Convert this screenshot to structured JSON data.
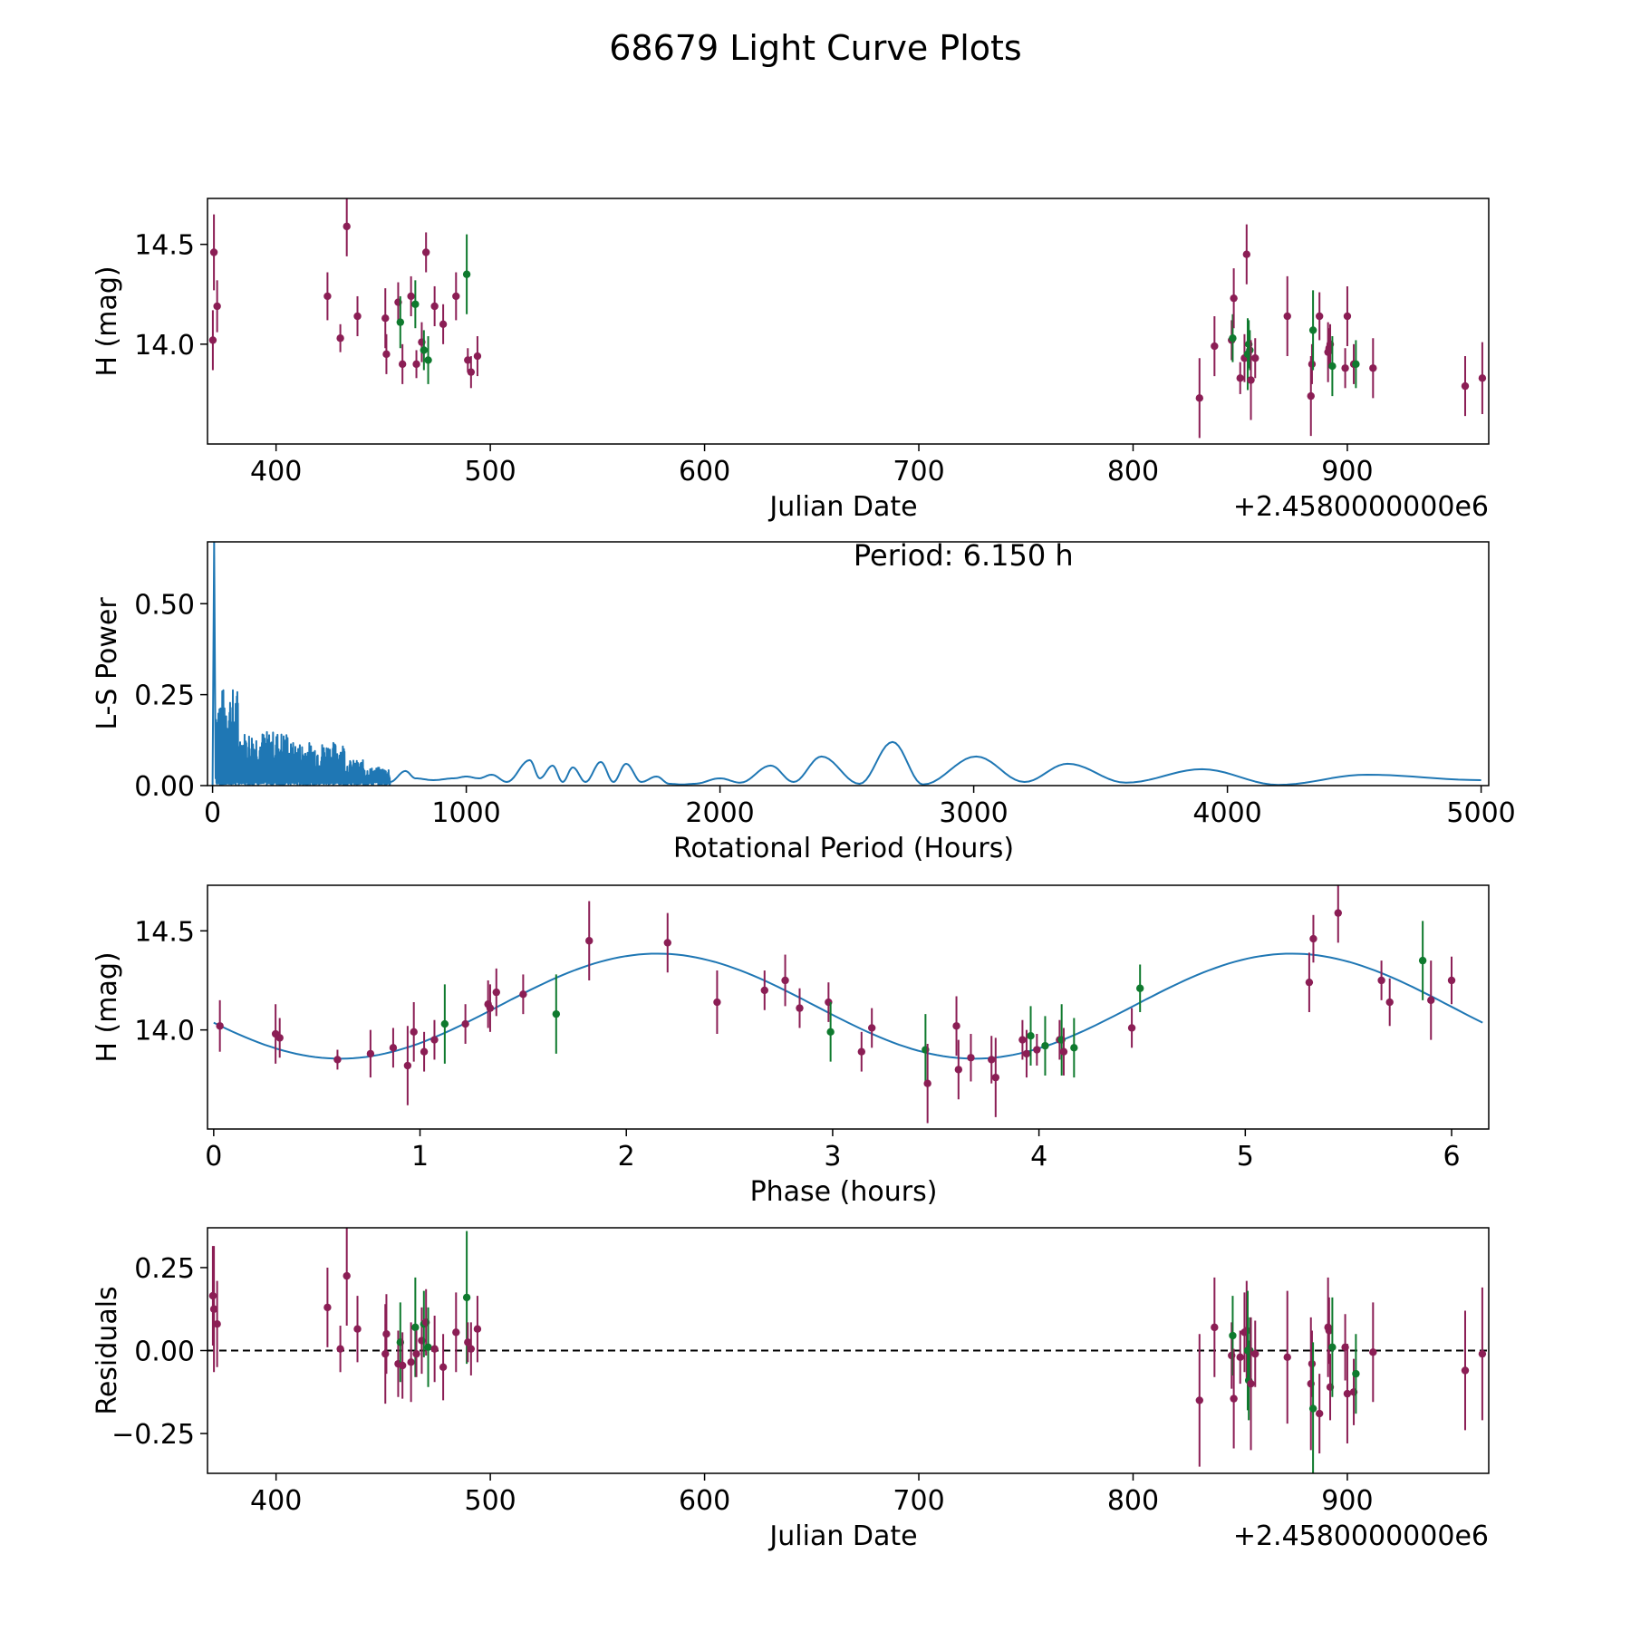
{
  "figure_title": "68679 Light Curve Plots",
  "colors": {
    "magenta": "#8b1e55",
    "green": "#0f7a2e",
    "line": "#1f77b4",
    "axis": "#000000"
  },
  "chart_data": [
    {
      "id": "lightcurve",
      "type": "scatter",
      "xlabel": "Julian Date",
      "ylabel": "H (mag)",
      "offset_text": "+2.4580000000e6",
      "xlim": [
        368,
        966
      ],
      "ylim": [
        13.5,
        14.73
      ],
      "xticks": [
        400,
        500,
        600,
        700,
        800,
        900
      ],
      "yticks": [
        14.0,
        14.5
      ],
      "ytick_labels": [
        "14.0",
        "14.5"
      ],
      "points": [
        [
          370.5,
          14.02,
          0.15,
          "m"
        ],
        [
          371,
          14.46,
          0.19,
          "m"
        ],
        [
          372.5,
          14.19,
          0.13,
          "m"
        ],
        [
          424,
          14.24,
          0.12,
          "m"
        ],
        [
          430,
          14.03,
          0.07,
          "m"
        ],
        [
          433,
          14.59,
          0.15,
          "m"
        ],
        [
          438,
          14.14,
          0.1,
          "m"
        ],
        [
          451,
          14.13,
          0.15,
          "m"
        ],
        [
          451.5,
          13.95,
          0.1,
          "m"
        ],
        [
          457,
          14.21,
          0.1,
          "m"
        ],
        [
          458,
          14.11,
          0.13,
          "g"
        ],
        [
          459,
          13.9,
          0.1,
          "m"
        ],
        [
          463,
          14.24,
          0.1,
          "m"
        ],
        [
          465,
          14.2,
          0.12,
          "g"
        ],
        [
          465.5,
          13.9,
          0.07,
          "m"
        ],
        [
          468,
          14.01,
          0.1,
          "m"
        ],
        [
          469,
          13.97,
          0.1,
          "g"
        ],
        [
          470,
          14.46,
          0.1,
          "m"
        ],
        [
          471,
          13.92,
          0.12,
          "g"
        ],
        [
          474,
          14.19,
          0.1,
          "m"
        ],
        [
          478,
          14.1,
          0.1,
          "m"
        ],
        [
          484,
          14.24,
          0.12,
          "m"
        ],
        [
          489,
          14.35,
          0.2,
          "g"
        ],
        [
          489.5,
          13.92,
          0.06,
          "m"
        ],
        [
          491,
          13.86,
          0.08,
          "m"
        ],
        [
          494,
          13.94,
          0.1,
          "m"
        ],
        [
          831,
          13.73,
          0.2,
          "m"
        ],
        [
          838,
          13.99,
          0.15,
          "m"
        ],
        [
          846,
          14.02,
          0.1,
          "m"
        ],
        [
          846.5,
          14.03,
          0.12,
          "g"
        ],
        [
          847,
          14.23,
          0.15,
          "m"
        ],
        [
          850,
          13.83,
          0.08,
          "m"
        ],
        [
          852,
          13.93,
          0.12,
          "m"
        ],
        [
          853,
          14.45,
          0.15,
          "m"
        ],
        [
          853.5,
          13.95,
          0.18,
          "g"
        ],
        [
          854,
          14.0,
          0.12,
          "g"
        ],
        [
          854.5,
          13.97,
          0.1,
          "g"
        ],
        [
          855,
          13.82,
          0.2,
          "m"
        ],
        [
          857,
          13.93,
          0.1,
          "m"
        ],
        [
          872,
          14.14,
          0.2,
          "m"
        ],
        [
          883,
          13.74,
          0.2,
          "m"
        ],
        [
          883.5,
          13.9,
          0.1,
          "m"
        ],
        [
          884,
          14.07,
          0.2,
          "g"
        ],
        [
          887,
          14.14,
          0.12,
          "m"
        ],
        [
          891,
          13.96,
          0.15,
          "m"
        ],
        [
          891.5,
          13.98,
          0.1,
          "m"
        ],
        [
          892,
          14.0,
          0.1,
          "m"
        ],
        [
          893,
          13.89,
          0.15,
          "g"
        ],
        [
          899,
          13.88,
          0.1,
          "m"
        ],
        [
          900,
          14.14,
          0.15,
          "m"
        ],
        [
          903,
          13.9,
          0.1,
          "m"
        ],
        [
          904,
          13.9,
          0.12,
          "g"
        ],
        [
          912,
          13.88,
          0.15,
          "m"
        ],
        [
          955,
          13.79,
          0.15,
          "m"
        ],
        [
          963,
          13.83,
          0.18,
          "m"
        ]
      ]
    },
    {
      "id": "periodogram",
      "type": "line",
      "xlabel": "Rotational Period (Hours)",
      "ylabel": "L-S Power",
      "annotation": "Period: 6.150 h",
      "xlim": [
        -20,
        5030
      ],
      "ylim": [
        0,
        0.67
      ],
      "xticks": [
        0,
        1000,
        2000,
        3000,
        4000,
        5000
      ],
      "yticks": [
        0.0,
        0.25,
        0.5
      ],
      "ytick_labels": [
        "0.00",
        "0.25",
        "0.50"
      ],
      "peak": {
        "period": 6.15,
        "power": 0.67
      },
      "smooth_curve": [
        [
          700,
          0.01
        ],
        [
          760,
          0.04
        ],
        [
          800,
          0.02
        ],
        [
          870,
          0.015
        ],
        [
          950,
          0.02
        ],
        [
          1000,
          0.025
        ],
        [
          1050,
          0.02
        ],
        [
          1100,
          0.03
        ],
        [
          1160,
          0.01
        ],
        [
          1250,
          0.07
        ],
        [
          1290,
          0.02
        ],
        [
          1340,
          0.055
        ],
        [
          1380,
          0.01
        ],
        [
          1420,
          0.05
        ],
        [
          1470,
          0.01
        ],
        [
          1530,
          0.065
        ],
        [
          1580,
          0.01
        ],
        [
          1630,
          0.06
        ],
        [
          1690,
          0.01
        ],
        [
          1750,
          0.025
        ],
        [
          1800,
          0.005
        ],
        [
          1850,
          0.003
        ],
        [
          1900,
          0.005
        ],
        [
          2000,
          0.02
        ],
        [
          2080,
          0.008
        ],
        [
          2200,
          0.055
        ],
        [
          2290,
          0.01
        ],
        [
          2400,
          0.08
        ],
        [
          2550,
          0.005
        ],
        [
          2680,
          0.12
        ],
        [
          2800,
          0.003
        ],
        [
          3010,
          0.08
        ],
        [
          3200,
          0.01
        ],
        [
          3370,
          0.06
        ],
        [
          3600,
          0.008
        ],
        [
          3900,
          0.045
        ],
        [
          4200,
          0.002
        ],
        [
          4550,
          0.03
        ],
        [
          5000,
          0.015
        ]
      ]
    },
    {
      "id": "phased",
      "type": "scatter",
      "xlabel": "Phase (hours)",
      "ylabel": "H (mag)",
      "xlim": [
        -0.03,
        6.18
      ],
      "ylim": [
        13.5,
        14.73
      ],
      "xticks": [
        0,
        1,
        2,
        3,
        4,
        5,
        6
      ],
      "yticks": [
        14.0,
        14.5
      ],
      "ytick_labels": [
        "14.0",
        "14.5"
      ],
      "model": {
        "mean": 14.12,
        "amplitude": 0.265,
        "period": 6.15,
        "peak_phase": 2.15
      },
      "points": [
        [
          0.03,
          14.02,
          0.13,
          "m"
        ],
        [
          0.3,
          13.98,
          0.15,
          "m"
        ],
        [
          0.32,
          13.96,
          0.1,
          "m"
        ],
        [
          0.6,
          13.85,
          0.05,
          "m"
        ],
        [
          0.76,
          13.88,
          0.12,
          "m"
        ],
        [
          0.87,
          13.91,
          0.1,
          "m"
        ],
        [
          0.94,
          13.82,
          0.2,
          "m"
        ],
        [
          0.97,
          13.99,
          0.15,
          "m"
        ],
        [
          1.02,
          13.89,
          0.1,
          "m"
        ],
        [
          1.07,
          13.95,
          0.1,
          "m"
        ],
        [
          1.12,
          14.03,
          0.2,
          "g"
        ],
        [
          1.22,
          14.03,
          0.1,
          "m"
        ],
        [
          1.33,
          14.13,
          0.12,
          "m"
        ],
        [
          1.34,
          14.11,
          0.12,
          "m"
        ],
        [
          1.37,
          14.19,
          0.12,
          "m"
        ],
        [
          1.5,
          14.18,
          0.1,
          "m"
        ],
        [
          1.66,
          14.08,
          0.2,
          "g"
        ],
        [
          1.82,
          14.45,
          0.2,
          "m"
        ],
        [
          2.2,
          14.44,
          0.15,
          "m"
        ],
        [
          2.44,
          14.14,
          0.16,
          "m"
        ],
        [
          2.67,
          14.2,
          0.1,
          "m"
        ],
        [
          2.77,
          14.25,
          0.13,
          "m"
        ],
        [
          2.84,
          14.11,
          0.1,
          "m"
        ],
        [
          2.98,
          14.14,
          0.1,
          "m"
        ],
        [
          2.99,
          13.99,
          0.15,
          "g"
        ],
        [
          3.14,
          13.89,
          0.1,
          "m"
        ],
        [
          3.19,
          14.01,
          0.1,
          "m"
        ],
        [
          3.45,
          13.9,
          0.18,
          "g"
        ],
        [
          3.46,
          13.73,
          0.2,
          "m"
        ],
        [
          3.6,
          14.02,
          0.15,
          "m"
        ],
        [
          3.61,
          13.8,
          0.15,
          "m"
        ],
        [
          3.67,
          13.86,
          0.12,
          "m"
        ],
        [
          3.77,
          13.85,
          0.12,
          "m"
        ],
        [
          3.79,
          13.76,
          0.2,
          "m"
        ],
        [
          3.92,
          13.95,
          0.1,
          "m"
        ],
        [
          3.94,
          13.88,
          0.12,
          "m"
        ],
        [
          3.96,
          13.97,
          0.15,
          "g"
        ],
        [
          3.99,
          13.9,
          0.08,
          "m"
        ],
        [
          4.03,
          13.92,
          0.15,
          "g"
        ],
        [
          4.1,
          13.95,
          0.1,
          "m"
        ],
        [
          4.11,
          13.95,
          0.18,
          "g"
        ],
        [
          4.12,
          13.89,
          0.12,
          "m"
        ],
        [
          4.17,
          13.91,
          0.15,
          "g"
        ],
        [
          4.45,
          14.01,
          0.1,
          "m"
        ],
        [
          4.49,
          14.21,
          0.12,
          "g"
        ],
        [
          5.31,
          14.24,
          0.15,
          "m"
        ],
        [
          5.33,
          14.46,
          0.12,
          "m"
        ],
        [
          5.45,
          14.59,
          0.15,
          "m"
        ],
        [
          5.66,
          14.25,
          0.1,
          "m"
        ],
        [
          5.7,
          14.14,
          0.12,
          "m"
        ],
        [
          5.86,
          14.35,
          0.2,
          "g"
        ],
        [
          5.9,
          14.15,
          0.2,
          "m"
        ],
        [
          6.0,
          14.25,
          0.12,
          "m"
        ]
      ]
    },
    {
      "id": "residuals",
      "type": "scatter",
      "xlabel": "Julian Date",
      "ylabel": "Residuals",
      "offset_text": "+2.4580000000e6",
      "xlim": [
        368,
        966
      ],
      "ylim": [
        -0.37,
        0.37
      ],
      "xticks": [
        400,
        500,
        600,
        700,
        800,
        900
      ],
      "yticks": [
        -0.25,
        0.0,
        0.25
      ],
      "ytick_labels": [
        "−0.25",
        "0.00",
        "0.25"
      ],
      "zero_line": 0.0,
      "points": [
        [
          370.5,
          0.165,
          0.15,
          "m"
        ],
        [
          371,
          0.125,
          0.19,
          "m"
        ],
        [
          372.5,
          0.08,
          0.13,
          "m"
        ],
        [
          424,
          0.13,
          0.12,
          "m"
        ],
        [
          430,
          0.005,
          0.07,
          "m"
        ],
        [
          433,
          0.225,
          0.15,
          "m"
        ],
        [
          438,
          0.065,
          0.1,
          "m"
        ],
        [
          451,
          -0.01,
          0.15,
          "m"
        ],
        [
          451.5,
          0.05,
          0.12,
          "m"
        ],
        [
          457,
          -0.04,
          0.1,
          "m"
        ],
        [
          458,
          0.025,
          0.12,
          "g"
        ],
        [
          459,
          -0.045,
          0.1,
          "m"
        ],
        [
          463,
          -0.035,
          0.12,
          "m"
        ],
        [
          465,
          0.07,
          0.15,
          "g"
        ],
        [
          465.5,
          -0.01,
          0.07,
          "m"
        ],
        [
          468,
          0.03,
          0.1,
          "m"
        ],
        [
          469,
          0.08,
          0.1,
          "g"
        ],
        [
          470,
          0.085,
          0.1,
          "m"
        ],
        [
          471,
          0.01,
          0.12,
          "g"
        ],
        [
          474,
          0.005,
          0.1,
          "m"
        ],
        [
          478,
          -0.05,
          0.1,
          "m"
        ],
        [
          484,
          0.055,
          0.12,
          "m"
        ],
        [
          489,
          0.16,
          0.2,
          "g"
        ],
        [
          489.5,
          0.025,
          0.06,
          "m"
        ],
        [
          491,
          0.005,
          0.08,
          "m"
        ],
        [
          494,
          0.065,
          0.1,
          "m"
        ],
        [
          831,
          -0.15,
          0.2,
          "m"
        ],
        [
          838,
          0.07,
          0.15,
          "m"
        ],
        [
          846,
          -0.015,
          0.1,
          "m"
        ],
        [
          846.5,
          0.045,
          0.12,
          "g"
        ],
        [
          847,
          -0.145,
          0.15,
          "m"
        ],
        [
          850,
          -0.02,
          0.08,
          "m"
        ],
        [
          852,
          0.055,
          0.12,
          "m"
        ],
        [
          853,
          0.06,
          0.15,
          "m"
        ],
        [
          853.5,
          0.0,
          0.18,
          "g"
        ],
        [
          854,
          -0.09,
          0.12,
          "g"
        ],
        [
          854.5,
          0.0,
          0.1,
          "g"
        ],
        [
          855,
          -0.1,
          0.2,
          "m"
        ],
        [
          857,
          -0.01,
          0.1,
          "m"
        ],
        [
          872,
          -0.02,
          0.2,
          "m"
        ],
        [
          883,
          -0.1,
          0.2,
          "m"
        ],
        [
          883.5,
          -0.04,
          0.1,
          "m"
        ],
        [
          884,
          -0.175,
          0.2,
          "g"
        ],
        [
          887,
          -0.19,
          0.12,
          "m"
        ],
        [
          891,
          0.07,
          0.15,
          "m"
        ],
        [
          891.5,
          0.06,
          0.1,
          "m"
        ],
        [
          892,
          -0.11,
          0.1,
          "m"
        ],
        [
          893,
          0.01,
          0.15,
          "g"
        ],
        [
          899,
          0.01,
          0.1,
          "m"
        ],
        [
          900,
          -0.13,
          0.15,
          "m"
        ],
        [
          903,
          -0.125,
          0.1,
          "m"
        ],
        [
          904,
          -0.07,
          0.12,
          "g"
        ],
        [
          912,
          -0.005,
          0.15,
          "m"
        ],
        [
          955,
          -0.06,
          0.18,
          "m"
        ],
        [
          963,
          -0.01,
          0.2,
          "m"
        ]
      ]
    }
  ]
}
